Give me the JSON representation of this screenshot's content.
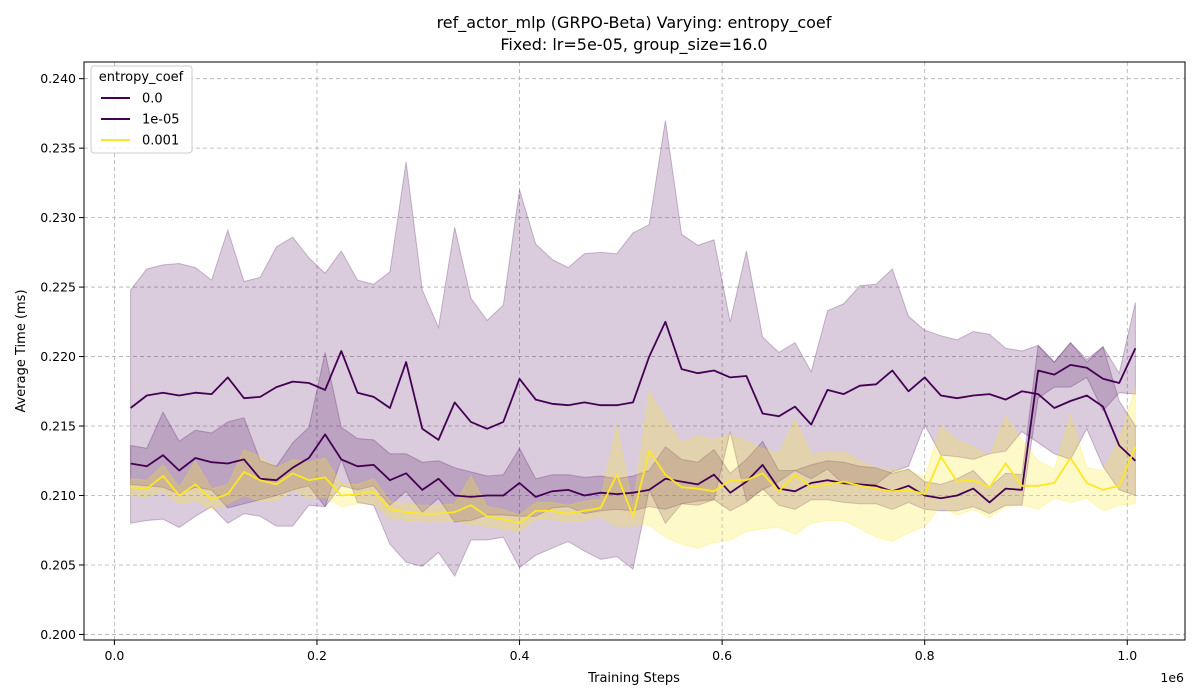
{
  "chart_data": {
    "type": "line",
    "title": "ref_actor_mlp (GRPO-Beta) Varying: entropy_coef",
    "subtitle": "Fixed: lr=5e-05, group_size=16.0",
    "xlabel": "Training Steps",
    "ylabel": "Average Time (ms)",
    "x_offset_label": "1e6",
    "xlim": [
      -0.03,
      1.057
    ],
    "ylim": [
      0.1996,
      0.2412
    ],
    "x_ticks": [
      0.0,
      0.2,
      0.4,
      0.6,
      0.8,
      1.0
    ],
    "x_tick_labels": [
      "0.0",
      "0.2",
      "0.4",
      "0.6",
      "0.8",
      "1.0"
    ],
    "y_ticks": [
      0.2,
      0.205,
      0.21,
      0.215,
      0.22,
      0.225,
      0.23,
      0.235,
      0.24
    ],
    "y_tick_labels": [
      "0.200",
      "0.205",
      "0.210",
      "0.215",
      "0.220",
      "0.225",
      "0.230",
      "0.235",
      "0.240"
    ],
    "grid": true,
    "legend": {
      "title": "entropy_coef",
      "position": "upper-left"
    },
    "x": [
      0.016,
      0.032,
      0.048,
      0.064,
      0.08,
      0.096,
      0.112,
      0.128,
      0.144,
      0.16,
      0.176,
      0.192,
      0.208,
      0.224,
      0.24,
      0.256,
      0.272,
      0.288,
      0.304,
      0.32,
      0.336,
      0.352,
      0.368,
      0.384,
      0.4,
      0.416,
      0.432,
      0.448,
      0.464,
      0.48,
      0.496,
      0.512,
      0.528,
      0.544,
      0.56,
      0.576,
      0.592,
      0.608,
      0.624,
      0.64,
      0.656,
      0.672,
      0.688,
      0.704,
      0.72,
      0.736,
      0.752,
      0.768,
      0.784,
      0.8,
      0.816,
      0.832,
      0.848,
      0.864,
      0.88,
      0.896,
      0.912,
      0.928,
      0.944,
      0.96,
      0.976,
      0.992,
      1.008
    ],
    "series": [
      {
        "name": "0.0",
        "color": "#440154",
        "band_alpha": 0.2,
        "mean": [
          0.2163,
          0.2172,
          0.2174,
          0.2172,
          0.2174,
          0.2173,
          0.2185,
          0.217,
          0.2171,
          0.2178,
          0.2182,
          0.2181,
          0.2176,
          0.2204,
          0.2174,
          0.2171,
          0.2163,
          0.2196,
          0.2148,
          0.214,
          0.2167,
          0.2153,
          0.2148,
          0.2153,
          0.2184,
          0.2169,
          0.2166,
          0.2165,
          0.2167,
          0.2165,
          0.2165,
          0.2167,
          0.22,
          0.2225,
          0.2191,
          0.2188,
          0.219,
          0.2185,
          0.2186,
          0.2159,
          0.2157,
          0.2164,
          0.2151,
          0.2176,
          0.2173,
          0.2179,
          0.218,
          0.219,
          0.2175,
          0.2185,
          0.2172,
          0.217,
          0.2172,
          0.2173,
          0.2169,
          0.2175,
          0.2173,
          0.2163,
          0.2168,
          0.2172,
          0.2164,
          0.2136,
          0.2125
        ],
        "upper": [
          0.2248,
          0.2263,
          0.2266,
          0.2267,
          0.2264,
          0.2255,
          0.2291,
          0.2254,
          0.2257,
          0.2279,
          0.2286,
          0.2271,
          0.226,
          0.2276,
          0.2255,
          0.2252,
          0.2261,
          0.234,
          0.2248,
          0.2221,
          0.2293,
          0.2242,
          0.2226,
          0.2237,
          0.232,
          0.2281,
          0.227,
          0.2264,
          0.2274,
          0.2275,
          0.2274,
          0.2289,
          0.2295,
          0.237,
          0.2288,
          0.228,
          0.2284,
          0.2225,
          0.2276,
          0.2214,
          0.2203,
          0.221,
          0.2189,
          0.2233,
          0.2238,
          0.2251,
          0.2252,
          0.2263,
          0.2229,
          0.2219,
          0.2215,
          0.2212,
          0.2218,
          0.2216,
          0.2206,
          0.2204,
          0.2208,
          0.2196,
          0.221,
          0.2196,
          0.2207,
          0.2168,
          0.215
        ],
        "lower": [
          0.208,
          0.2082,
          0.2083,
          0.2077,
          0.2085,
          0.2092,
          0.208,
          0.2087,
          0.2085,
          0.2078,
          0.2078,
          0.2093,
          0.2092,
          0.2126,
          0.2095,
          0.2093,
          0.2065,
          0.2052,
          0.2049,
          0.2059,
          0.2042,
          0.2068,
          0.2068,
          0.207,
          0.2048,
          0.2057,
          0.2062,
          0.2067,
          0.206,
          0.2054,
          0.2056,
          0.2047,
          0.2104,
          0.208,
          0.2094,
          0.2096,
          0.2097,
          0.2146,
          0.2096,
          0.2104,
          0.211,
          0.2118,
          0.2112,
          0.2119,
          0.2108,
          0.2107,
          0.2108,
          0.2117,
          0.2121,
          0.2151,
          0.2129,
          0.2128,
          0.2126,
          0.213,
          0.2132,
          0.2146,
          0.2138,
          0.213,
          0.2126,
          0.2148,
          0.2121,
          0.2104,
          0.21
        ]
      },
      {
        "name": "1e-05",
        "color": "#440154",
        "band_alpha": 0.2,
        "mean": [
          0.2123,
          0.2121,
          0.2129,
          0.2118,
          0.2127,
          0.2124,
          0.2123,
          0.2126,
          0.2112,
          0.2111,
          0.212,
          0.2127,
          0.2144,
          0.2126,
          0.2121,
          0.2122,
          0.2111,
          0.2116,
          0.2104,
          0.2112,
          0.21,
          0.2099,
          0.21,
          0.21,
          0.2109,
          0.2099,
          0.2103,
          0.2104,
          0.21,
          0.2102,
          0.2101,
          0.2102,
          0.2104,
          0.2112,
          0.211,
          0.2108,
          0.2115,
          0.2102,
          0.211,
          0.2122,
          0.2105,
          0.2103,
          0.2109,
          0.2111,
          0.2109,
          0.2108,
          0.2107,
          0.2103,
          0.2107,
          0.21,
          0.2098,
          0.21,
          0.2105,
          0.2095,
          0.2105,
          0.2104,
          0.219,
          0.2187,
          0.2194,
          0.2192,
          0.2184,
          0.2181,
          0.2206
        ],
        "upper": [
          0.2136,
          0.2134,
          0.216,
          0.2139,
          0.2147,
          0.2145,
          0.2153,
          0.2156,
          0.2125,
          0.2121,
          0.2138,
          0.2149,
          0.2203,
          0.2149,
          0.2141,
          0.214,
          0.213,
          0.213,
          0.2124,
          0.2125,
          0.212,
          0.2117,
          0.2114,
          0.2115,
          0.2134,
          0.2112,
          0.2115,
          0.2115,
          0.2113,
          0.2114,
          0.2112,
          0.2114,
          0.2118,
          0.2135,
          0.2126,
          0.2124,
          0.2133,
          0.2116,
          0.2126,
          0.2139,
          0.2118,
          0.2118,
          0.2122,
          0.2125,
          0.2124,
          0.2121,
          0.212,
          0.2116,
          0.2119,
          0.211,
          0.2108,
          0.2112,
          0.2118,
          0.2106,
          0.2116,
          0.2115,
          0.2208,
          0.2196,
          0.221,
          0.2198,
          0.2207,
          0.2188,
          0.2239
        ],
        "lower": [
          0.2108,
          0.2107,
          0.2106,
          0.2101,
          0.2106,
          0.2104,
          0.2091,
          0.2094,
          0.2097,
          0.21,
          0.2104,
          0.2107,
          0.2092,
          0.2107,
          0.2104,
          0.2107,
          0.2093,
          0.2103,
          0.2088,
          0.2098,
          0.2081,
          0.2082,
          0.2086,
          0.2086,
          0.2085,
          0.2085,
          0.2091,
          0.2092,
          0.2087,
          0.2089,
          0.209,
          0.2089,
          0.2092,
          0.209,
          0.2094,
          0.2093,
          0.2097,
          0.2089,
          0.2095,
          0.2105,
          0.2093,
          0.209,
          0.2097,
          0.2097,
          0.2095,
          0.2094,
          0.2094,
          0.209,
          0.2095,
          0.209,
          0.2089,
          0.2089,
          0.2092,
          0.2087,
          0.2093,
          0.2093,
          0.217,
          0.2178,
          0.2178,
          0.2185,
          0.2161,
          0.2174,
          0.2173
        ]
      },
      {
        "name": "0.001",
        "color": "#fde725",
        "band_alpha": 0.25,
        "mean": [
          0.2106,
          0.2105,
          0.2114,
          0.21,
          0.2108,
          0.2097,
          0.2101,
          0.2117,
          0.2111,
          0.2108,
          0.2116,
          0.2111,
          0.2113,
          0.21,
          0.2101,
          0.2103,
          0.209,
          0.2088,
          0.2087,
          0.2087,
          0.2088,
          0.2093,
          0.2085,
          0.2083,
          0.208,
          0.2089,
          0.2089,
          0.2087,
          0.2089,
          0.2091,
          0.2115,
          0.2085,
          0.2132,
          0.2115,
          0.2106,
          0.2105,
          0.2103,
          0.2111,
          0.2111,
          0.2116,
          0.2103,
          0.2115,
          0.2106,
          0.2108,
          0.211,
          0.2107,
          0.2105,
          0.2103,
          0.2104,
          0.2101,
          0.2128,
          0.211,
          0.2111,
          0.2106,
          0.2123,
          0.2107,
          0.2107,
          0.2109,
          0.2127,
          0.2109,
          0.2104,
          0.2107,
          0.2135
        ],
        "upper": [
          0.2112,
          0.2111,
          0.2122,
          0.2106,
          0.2125,
          0.2105,
          0.2108,
          0.2133,
          0.2128,
          0.212,
          0.2126,
          0.2124,
          0.2127,
          0.2108,
          0.2108,
          0.2112,
          0.2096,
          0.2094,
          0.2093,
          0.2093,
          0.2094,
          0.2114,
          0.2092,
          0.209,
          0.2086,
          0.2095,
          0.2095,
          0.2093,
          0.2096,
          0.2097,
          0.2151,
          0.2092,
          0.2175,
          0.2155,
          0.2138,
          0.2143,
          0.214,
          0.2144,
          0.2139,
          0.2134,
          0.213,
          0.2155,
          0.213,
          0.2131,
          0.2132,
          0.2125,
          0.212,
          0.2118,
          0.2118,
          0.2113,
          0.215,
          0.214,
          0.2135,
          0.2128,
          0.2157,
          0.214,
          0.2125,
          0.2119,
          0.2158,
          0.212,
          0.2118,
          0.214,
          0.2178
        ],
        "lower": [
          0.21,
          0.2099,
          0.2103,
          0.2094,
          0.2096,
          0.209,
          0.2094,
          0.21,
          0.2096,
          0.2096,
          0.2104,
          0.2098,
          0.2099,
          0.2092,
          0.2094,
          0.2094,
          0.2084,
          0.2082,
          0.2081,
          0.2081,
          0.2082,
          0.2079,
          0.2078,
          0.2076,
          0.2074,
          0.2083,
          0.2083,
          0.2081,
          0.2082,
          0.2085,
          0.2078,
          0.2078,
          0.2079,
          0.207,
          0.2065,
          0.2062,
          0.2066,
          0.2068,
          0.2074,
          0.2076,
          0.2077,
          0.2072,
          0.208,
          0.2082,
          0.2082,
          0.2076,
          0.207,
          0.2067,
          0.2073,
          0.2078,
          0.2092,
          0.2086,
          0.209,
          0.2084,
          0.2092,
          0.2093,
          0.209,
          0.2098,
          0.2095,
          0.2098,
          0.2089,
          0.2093,
          0.2094
        ]
      }
    ]
  }
}
